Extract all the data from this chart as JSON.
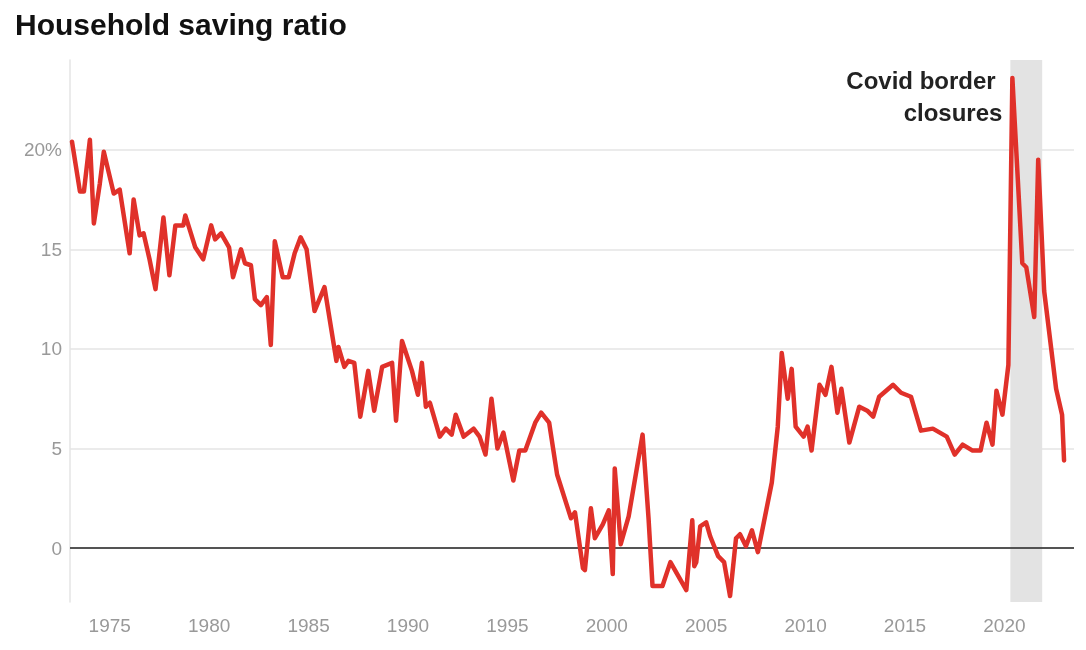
{
  "chart_data": {
    "type": "line",
    "title": "Household saving ratio",
    "x": [
      1973.1,
      1973.5,
      1973.7,
      1974.0,
      1974.2,
      1974.5,
      1974.7,
      1975.2,
      1975.5,
      1976.0,
      1976.2,
      1976.5,
      1976.7,
      1977.0,
      1977.3,
      1977.7,
      1978.0,
      1978.3,
      1978.7,
      1978.8,
      1979.3,
      1979.7,
      1980.1,
      1980.3,
      1980.6,
      1981.0,
      1981.2,
      1981.6,
      1981.8,
      1982.1,
      1982.3,
      1982.6,
      1982.9,
      1983.1,
      1983.3,
      1983.7,
      1984.0,
      1984.3,
      1984.6,
      1984.9,
      1985.3,
      1985.8,
      1986.4,
      1986.5,
      1986.8,
      1987.0,
      1987.3,
      1987.6,
      1988.0,
      1988.3,
      1988.7,
      1989.2,
      1989.4,
      1989.7,
      1990.2,
      1990.5,
      1990.7,
      1990.9,
      1991.1,
      1991.6,
      1991.9,
      1992.2,
      1992.4,
      1992.8,
      1993.3,
      1993.6,
      1993.9,
      1994.2,
      1994.5,
      1994.8,
      1995.3,
      1995.6,
      1995.9,
      1996.4,
      1996.7,
      1997.1,
      1997.5,
      1998.2,
      1998.4,
      1998.8,
      1998.9,
      1999.2,
      1999.4,
      1999.8,
      2000.1,
      2000.3,
      2000.4,
      2000.7,
      2001.1,
      2001.8,
      2002.1,
      2002.3,
      2002.6,
      2002.8,
      2003.2,
      2003.6,
      2004.0,
      2004.3,
      2004.4,
      2004.5,
      2004.7,
      2005.0,
      2005.2,
      2005.6,
      2005.9,
      2006.2,
      2006.5,
      2006.7,
      2007.0,
      2007.3,
      2007.6,
      2008.3,
      2008.6,
      2008.8,
      2009.1,
      2009.3,
      2009.5,
      2009.9,
      2010.1,
      2010.3,
      2010.7,
      2011.0,
      2011.3,
      2011.6,
      2011.8,
      2012.2,
      2012.7,
      2013.1,
      2013.4,
      2013.7,
      2014.4,
      2014.8,
      2015.3,
      2015.8,
      2016.4,
      2017.1,
      2017.5,
      2017.9,
      2018.4,
      2018.8,
      2019.1,
      2019.4,
      2019.6,
      2019.9,
      2020.2,
      2020.4,
      2020.9,
      2021.1,
      2021.5,
      2021.7,
      2022.0,
      2022.6,
      2022.9,
      2023.0
    ],
    "series": [
      {
        "color": "#e0312a",
        "values": [
          20.4,
          17.9,
          17.9,
          20.5,
          16.3,
          18.3,
          19.9,
          17.8,
          18.0,
          14.8,
          17.5,
          15.7,
          15.8,
          14.5,
          13.0,
          16.6,
          13.7,
          16.2,
          16.2,
          16.7,
          15.1,
          14.5,
          16.2,
          15.5,
          15.8,
          15.1,
          13.6,
          15.0,
          14.3,
          14.2,
          12.5,
          12.2,
          12.6,
          10.2,
          15.4,
          13.6,
          13.6,
          14.8,
          15.6,
          15.0,
          11.9,
          13.1,
          9.4,
          10.1,
          9.1,
          9.4,
          9.3,
          6.6,
          8.9,
          6.9,
          9.1,
          9.3,
          6.4,
          10.4,
          8.9,
          7.7,
          9.3,
          7.1,
          7.3,
          5.6,
          6.0,
          5.7,
          6.7,
          5.6,
          6.0,
          5.6,
          4.7,
          7.5,
          5.0,
          5.8,
          3.4,
          4.9,
          4.9,
          6.3,
          6.8,
          6.3,
          3.7,
          1.5,
          1.8,
          -1.0,
          -1.1,
          2.0,
          0.5,
          1.2,
          1.9,
          -1.3,
          4.0,
          0.2,
          1.6,
          5.7,
          1.5,
          -1.9,
          -1.9,
          -1.9,
          -0.7,
          -1.4,
          -2.1,
          1.4,
          -0.9,
          -0.7,
          1.1,
          1.3,
          0.6,
          -0.4,
          -0.7,
          -2.4,
          0.5,
          0.7,
          0.1,
          0.9,
          -0.2,
          3.3,
          6.1,
          9.8,
          7.5,
          9.0,
          6.1,
          5.6,
          6.1,
          4.9,
          8.2,
          7.7,
          9.1,
          6.8,
          8.0,
          5.3,
          7.1,
          6.9,
          6.6,
          7.6,
          8.2,
          7.8,
          7.6,
          5.9,
          6.0,
          5.6,
          4.7,
          5.2,
          4.9,
          4.9,
          6.3,
          5.2,
          7.9,
          6.7,
          9.2,
          23.6,
          14.3,
          14.1,
          11.6,
          19.5,
          12.9,
          8.0,
          6.7,
          4.4
        ]
      }
    ],
    "xlim": [
      1973,
      2023.5
    ],
    "xticks": [
      1975,
      1980,
      1985,
      1990,
      1995,
      2000,
      2005,
      2010,
      2015,
      2020
    ],
    "ylim": [
      -2.7,
      24.5
    ],
    "yticks": [
      0,
      5,
      10,
      15,
      {
        "value": 20,
        "label": "20%"
      }
    ],
    "grid": "y",
    "marker": "none",
    "line_style": "solid",
    "bands": [
      {
        "axis": "x",
        "from": 2020.3,
        "to": 2021.9,
        "label": "Covid border closures",
        "color": "#e3e3e3"
      }
    ],
    "ref_lines": [
      {
        "axis": "y",
        "value": 0,
        "color": "#222222",
        "line_style": "solid"
      }
    ]
  }
}
